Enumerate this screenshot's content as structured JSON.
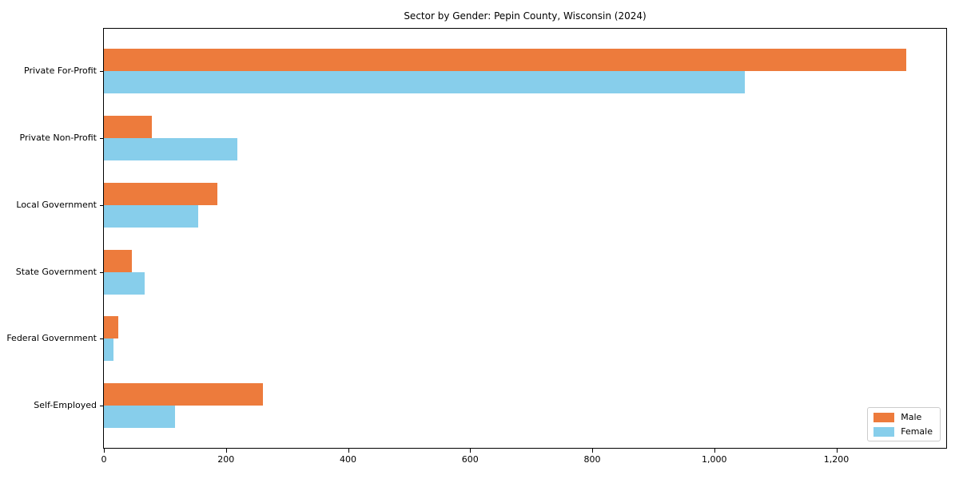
{
  "page": {
    "background_color": "#ffffff",
    "text_color": "#000000",
    "spine_color": "#000000",
    "legend_border_color": "#cccccc"
  },
  "chart_data": {
    "type": "bar",
    "orientation": "horizontal",
    "title": "Sector by Gender: Pepin County, Wisconsin (2024)",
    "xlabel": "",
    "ylabel": "",
    "categories": [
      "Private For-Profit",
      "Private Non-Profit",
      "Local Government",
      "State Government",
      "Federal Government",
      "Self-Employed"
    ],
    "series": [
      {
        "name": "Male",
        "color": "#ED7B3C",
        "values": [
          1315,
          79,
          186,
          46,
          24,
          260
        ]
      },
      {
        "name": "Female",
        "color": "#87CEEB",
        "values": [
          1050,
          219,
          155,
          67,
          15,
          116
        ]
      }
    ],
    "xlim": [
      0,
      1380
    ],
    "xticks": [
      0,
      200,
      400,
      600,
      800,
      1000,
      1200
    ],
    "xtick_labels": [
      "0",
      "200",
      "400",
      "600",
      "800",
      "1,000",
      "1,200"
    ],
    "grid": false,
    "legend": {
      "position": "lower right",
      "entries": [
        "Male",
        "Female"
      ]
    }
  }
}
